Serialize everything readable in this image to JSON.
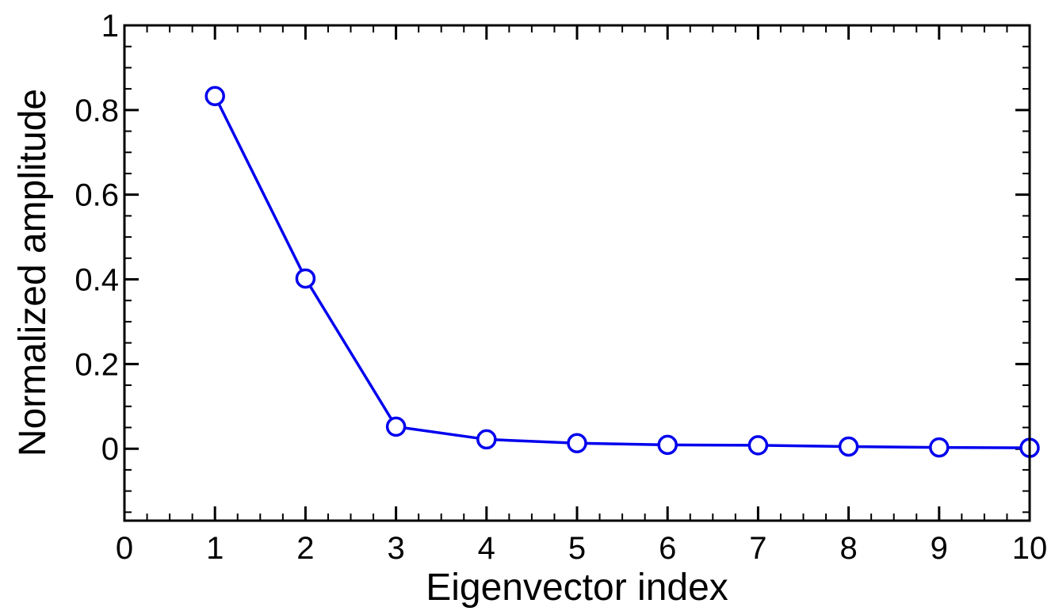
{
  "chart_data": {
    "type": "line",
    "title": "",
    "xlabel": "Eigenvector index",
    "ylabel": "Normalized amplitude",
    "xlim": [
      0,
      10
    ],
    "ylim": [
      -0.17,
      1.0
    ],
    "x_ticks": [
      0,
      1,
      2,
      3,
      4,
      5,
      6,
      7,
      8,
      9,
      10
    ],
    "x_tick_labels": [
      "0",
      "1",
      "2",
      "3",
      "4",
      "5",
      "6",
      "7",
      "8",
      "9",
      "10"
    ],
    "y_ticks": [
      0,
      0.2,
      0.4,
      0.6,
      0.8,
      1
    ],
    "y_tick_labels": [
      "0",
      "0.2",
      "0.4",
      "0.6",
      "0.8",
      "1"
    ],
    "x_minor_step": 0.25,
    "y_minor_step": 0.05,
    "grid": false,
    "legend": "none",
    "series": [
      {
        "color": "#0000ee",
        "marker": "open-circle",
        "x": [
          1,
          2,
          3,
          4,
          5,
          6,
          7,
          8,
          9,
          10
        ],
        "y": [
          0.833,
          0.402,
          0.052,
          0.022,
          0.013,
          0.009,
          0.008,
          0.005,
          0.003,
          0.002
        ]
      }
    ]
  }
}
